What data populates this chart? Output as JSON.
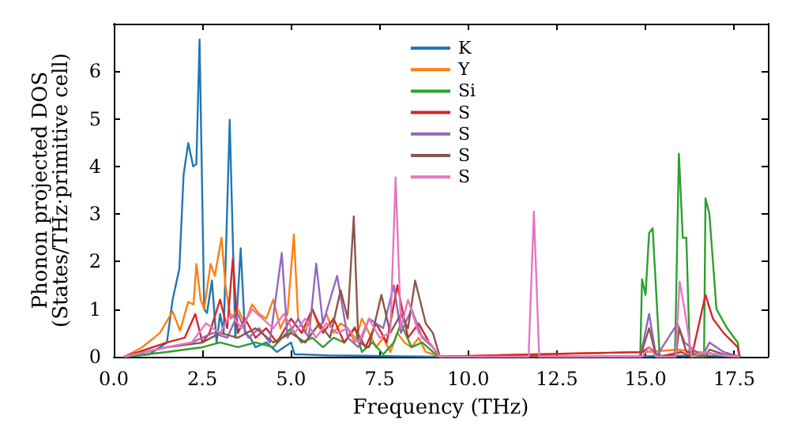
{
  "chart_data": {
    "type": "line",
    "xlabel": "Frequency (THz)",
    "ylabel": "Phonon projected DOS\n(States/THz·primitive cell)",
    "xlim": [
      0,
      18.45
    ],
    "ylim": [
      0,
      7
    ],
    "xticks": [
      {
        "value": 0,
        "label": "0.0"
      },
      {
        "value": 2.5,
        "label": "2.5"
      },
      {
        "value": 5,
        "label": "5.0"
      },
      {
        "value": 7.5,
        "label": "7.5"
      },
      {
        "value": 10,
        "label": "10.0"
      },
      {
        "value": 12.5,
        "label": "12.5"
      },
      {
        "value": 15,
        "label": "15.0"
      },
      {
        "value": 17.5,
        "label": "17.5"
      }
    ],
    "yticks": [
      0,
      1,
      2,
      3,
      4,
      5,
      6
    ],
    "legend": "top",
    "grid": false,
    "marker": "none",
    "line_style": "solid",
    "series": [
      {
        "name": "K",
        "color": "#1f77b4",
        "x": [
          0.3,
          1.0,
          1.5,
          1.66,
          1.85,
          1.97,
          2.1,
          2.24,
          2.33,
          2.42,
          2.55,
          2.63,
          2.77,
          2.9,
          3.0,
          3.1,
          3.27,
          3.43,
          3.58,
          3.7,
          3.85,
          4.0,
          4.3,
          4.6,
          5.0,
          5.1,
          5.3,
          6.0,
          7.0,
          9.2,
          11.7,
          11.9,
          12.1,
          14.7,
          15.5,
          16.5,
          17.7
        ],
        "values": [
          0,
          0.05,
          0.3,
          1.2,
          1.85,
          3.83,
          4.49,
          4.0,
          4.05,
          6.67,
          1.0,
          0.92,
          1.6,
          0.3,
          0.9,
          0.5,
          4.98,
          0.4,
          2.28,
          0.5,
          0.4,
          0.2,
          0.3,
          0.1,
          0.3,
          0.05,
          0.05,
          0.03,
          0.02,
          0,
          0,
          0.02,
          0,
          0,
          0.02,
          0.02,
          0
        ]
      },
      {
        "name": "Y",
        "color": "#ff7f0e",
        "x": [
          0.3,
          0.8,
          1.3,
          1.66,
          1.87,
          2.1,
          2.25,
          2.33,
          2.45,
          2.55,
          2.73,
          2.85,
          3.04,
          3.15,
          3.3,
          3.5,
          3.7,
          3.9,
          4.1,
          4.3,
          4.5,
          4.7,
          4.9,
          5.08,
          5.2,
          5.4,
          5.6,
          5.8,
          6.0,
          6.2,
          6.4,
          6.6,
          6.8,
          7.0,
          7.2,
          7.4,
          7.6,
          7.8,
          8.0,
          8.2,
          8.4,
          8.6,
          8.8,
          9.0,
          9.2,
          11.85,
          15.0,
          15.9,
          16.5,
          17.5
        ],
        "values": [
          0,
          0.2,
          0.5,
          0.95,
          0.55,
          1.15,
          1.1,
          1.95,
          1.2,
          1.0,
          1.95,
          1.7,
          2.5,
          1.5,
          0.8,
          1.0,
          0.7,
          1.1,
          0.9,
          0.8,
          1.2,
          0.6,
          0.9,
          2.57,
          0.8,
          0.5,
          1.0,
          0.6,
          0.9,
          0.5,
          0.7,
          0.6,
          0.3,
          0.8,
          0.5,
          0.2,
          0.4,
          0.1,
          0.5,
          0.3,
          0.2,
          0.4,
          0.1,
          0.05,
          0,
          0.05,
          0.1,
          0.15,
          0.1,
          0
        ]
      },
      {
        "name": "Si",
        "color": "#2ca02c",
        "x": [
          0.3,
          1.5,
          2.5,
          3.0,
          3.5,
          4.0,
          4.5,
          5.0,
          5.3,
          5.6,
          5.9,
          6.2,
          6.5,
          6.8,
          7.0,
          7.3,
          7.6,
          7.9,
          8.1,
          8.4,
          8.7,
          9.0,
          9.2,
          11.85,
          14.85,
          14.9,
          15.0,
          15.1,
          15.2,
          15.4,
          15.83,
          15.94,
          16.05,
          16.15,
          16.25,
          16.65,
          16.69,
          16.8,
          17.0,
          17.3,
          17.6,
          17.65
        ],
        "values": [
          0,
          0.1,
          0.2,
          0.3,
          0.2,
          0.3,
          0.2,
          0.6,
          0.3,
          0.4,
          0.2,
          0.4,
          0.3,
          0.62,
          0.1,
          0.3,
          0.05,
          0.3,
          0.7,
          0.2,
          0.3,
          0.1,
          0,
          0,
          0,
          1.63,
          1.3,
          2.6,
          2.7,
          0,
          0,
          4.27,
          2.5,
          2.5,
          0,
          0,
          3.33,
          3.0,
          1.0,
          0.6,
          0.3,
          0
        ]
      },
      {
        "name": "S",
        "color": "#d62728",
        "x": [
          0.3,
          1.5,
          2.0,
          2.3,
          2.5,
          2.7,
          3.0,
          3.2,
          3.36,
          3.5,
          3.7,
          4.0,
          4.3,
          4.6,
          5.0,
          5.3,
          5.6,
          5.9,
          6.2,
          6.5,
          6.8,
          7.1,
          7.4,
          7.7,
          8.0,
          8.3,
          8.6,
          8.9,
          9.2,
          11.85,
          14.9,
          15.1,
          15.4,
          16.0,
          16.3,
          16.69,
          16.9,
          17.2,
          17.6,
          17.65
        ],
        "values": [
          0,
          0.3,
          0.4,
          0.9,
          0.3,
          0.5,
          1.2,
          0.6,
          2.07,
          0.5,
          0.8,
          0.4,
          0.6,
          0.3,
          0.8,
          0.5,
          1.0,
          0.5,
          0.8,
          0.3,
          0.6,
          0.2,
          0.7,
          0.3,
          1.5,
          0.4,
          0.7,
          0.3,
          0,
          0.05,
          0.1,
          0.2,
          0,
          0.1,
          0,
          1.3,
          0.8,
          0.5,
          0.2,
          0
        ]
      },
      {
        "name": "S",
        "color": "#9467bd",
        "x": [
          0.3,
          1.5,
          2.2,
          2.8,
          3.2,
          3.5,
          3.8,
          4.1,
          4.4,
          4.74,
          4.9,
          5.2,
          5.5,
          5.71,
          5.9,
          6.3,
          6.6,
          6.9,
          7.2,
          7.6,
          7.9,
          8.1,
          8.4,
          8.7,
          9.0,
          9.2,
          11.7,
          12.0,
          14.85,
          15.1,
          15.3,
          15.9,
          16.1,
          16.6,
          16.8,
          17.2,
          17.65
        ],
        "values": [
          0,
          0.2,
          0.3,
          0.5,
          0.4,
          0.9,
          0.4,
          0.6,
          0.3,
          2.18,
          0.4,
          0.8,
          0.4,
          1.96,
          0.7,
          1.7,
          0.4,
          0.2,
          0.8,
          0.6,
          1.5,
          0.5,
          1.0,
          0.4,
          0.2,
          0,
          0,
          0,
          0,
          0.9,
          0,
          0.7,
          0.3,
          0,
          0.3,
          0.1,
          0
        ]
      },
      {
        "name": "S",
        "color": "#8c564b",
        "x": [
          0.3,
          1.5,
          2.5,
          3.0,
          3.5,
          4.0,
          4.5,
          5.0,
          5.4,
          5.8,
          6.1,
          6.4,
          6.6,
          6.77,
          6.9,
          7.2,
          7.55,
          7.8,
          8.1,
          8.3,
          8.5,
          8.8,
          9.0,
          9.2,
          11.85,
          14.85,
          15.1,
          15.3,
          15.85,
          15.95,
          16.15,
          16.7,
          16.8,
          17.2,
          17.65
        ],
        "values": [
          0,
          0.2,
          0.3,
          0.5,
          0.4,
          0.6,
          0.3,
          0.5,
          0.3,
          0.7,
          0.4,
          1.4,
          0.8,
          2.95,
          0.3,
          0.2,
          1.3,
          0.5,
          0.9,
          0.6,
          1.6,
          0.7,
          0.5,
          0,
          0,
          0,
          0.6,
          0,
          0,
          0.6,
          0.1,
          0,
          0.15,
          0.05,
          0
        ]
      },
      {
        "name": "S",
        "color": "#e377c2",
        "x": [
          0.3,
          1.5,
          2.2,
          2.6,
          3.0,
          3.3,
          3.6,
          3.9,
          4.2,
          4.5,
          4.8,
          5.1,
          5.4,
          5.7,
          6.0,
          6.3,
          6.6,
          6.9,
          7.2,
          7.5,
          7.8,
          7.95,
          8.1,
          8.3,
          8.6,
          8.9,
          9.2,
          11.7,
          11.85,
          12.0,
          14.9,
          15.1,
          15.3,
          15.85,
          15.96,
          16.1,
          16.3,
          16.7,
          17.0,
          17.65
        ],
        "values": [
          0,
          0.2,
          0.3,
          0.7,
          0.5,
          0.9,
          0.6,
          1.0,
          0.8,
          0.6,
          0.9,
          0.5,
          0.8,
          0.4,
          0.7,
          0.5,
          0.6,
          0.3,
          0.8,
          0.4,
          0.5,
          3.77,
          0.6,
          1.2,
          0.5,
          0.3,
          0,
          0,
          3.05,
          0,
          0,
          0.2,
          0,
          0,
          1.58,
          1.0,
          0,
          0.1,
          0.05,
          0
        ]
      }
    ]
  }
}
